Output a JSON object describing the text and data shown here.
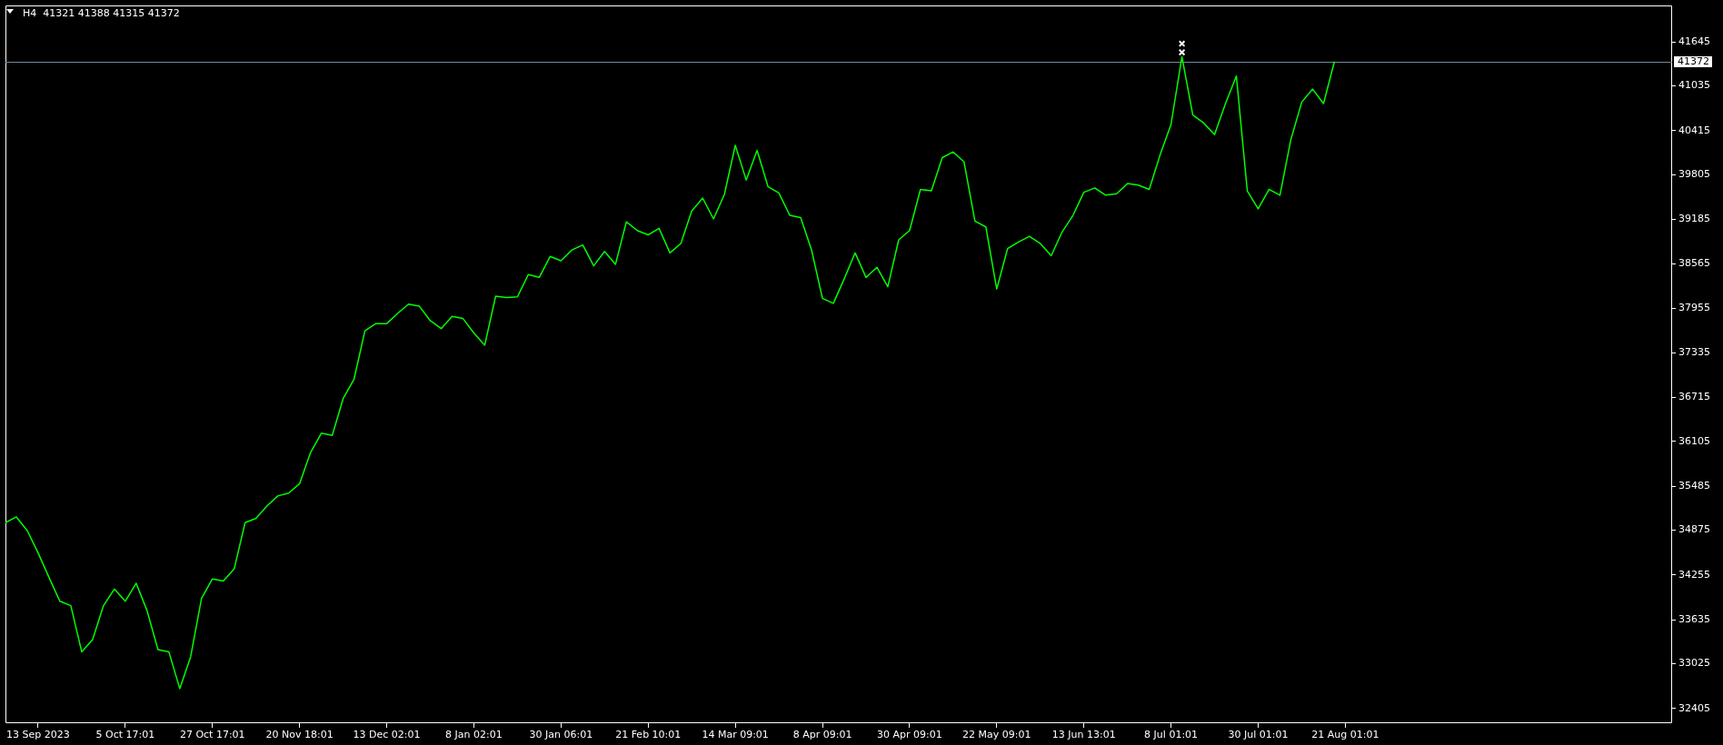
{
  "chart_data": {
    "type": "line",
    "title": "H4  41321 41388 41315 41372",
    "categories": [
      null,
      null,
      null,
      "13 Sep 2023",
      null,
      null,
      null,
      null,
      null,
      null,
      null,
      "5 Oct 17:01",
      null,
      null,
      null,
      null,
      null,
      null,
      null,
      "27 Oct 17:01",
      null,
      null,
      null,
      null,
      null,
      null,
      null,
      "20 Nov 18:01",
      null,
      null,
      null,
      null,
      null,
      null,
      null,
      "13 Dec 02:01",
      null,
      null,
      null,
      null,
      null,
      null,
      null,
      "8 Jan 02:01",
      null,
      null,
      null,
      null,
      null,
      null,
      null,
      "30 Jan 06:01",
      null,
      null,
      null,
      null,
      null,
      null,
      null,
      "21 Feb 10:01",
      null,
      null,
      null,
      null,
      null,
      null,
      null,
      "14 Mar 09:01",
      null,
      null,
      null,
      null,
      null,
      null,
      null,
      "8 Apr 09:01",
      null,
      null,
      null,
      null,
      null,
      null,
      null,
      "30 Apr 09:01",
      null,
      null,
      null,
      null,
      null,
      null,
      null,
      "22 May 09:01",
      null,
      null,
      null,
      null,
      null,
      null,
      null,
      "13 Jun 13:01",
      null,
      null,
      null,
      null,
      null,
      null,
      null,
      "8 Jul 01:01",
      null,
      null,
      null,
      null,
      null,
      null,
      null,
      "30 Jul 01:01",
      null,
      null,
      null,
      null,
      null,
      null,
      null,
      "21 Aug 01:01",
      null,
      null,
      null,
      null,
      null,
      null,
      null,
      null,
      null,
      null,
      null,
      null,
      null,
      null,
      null,
      null,
      null,
      null,
      null,
      null,
      null,
      null,
      null,
      null,
      null,
      null,
      null,
      null,
      null,
      null
    ],
    "series": [
      {
        "type": "line",
        "color": "#00ff00",
        "values": [
          34980,
          35060,
          34870,
          34560,
          34220,
          33890,
          33830,
          33190,
          33360,
          33830,
          34060,
          33890,
          34140,
          33760,
          33220,
          33190,
          32680,
          33120,
          33930,
          34200,
          34170,
          34340,
          34980,
          35040,
          35210,
          35350,
          35390,
          35520,
          35950,
          36220,
          36190,
          36700,
          36970,
          37640,
          37740,
          37740,
          37880,
          38010,
          37980,
          37780,
          37670,
          37840,
          37810,
          37610,
          37440,
          38120,
          38100,
          38110,
          38420,
          38380,
          38670,
          38610,
          38760,
          38830,
          38540,
          38740,
          38560,
          39150,
          39030,
          38970,
          39060,
          38720,
          38850,
          39300,
          39480,
          39190,
          39530,
          40210,
          39730,
          40140,
          39640,
          39550,
          39240,
          39210,
          38760,
          38090,
          38020,
          38360,
          38720,
          38380,
          38520,
          38250,
          38900,
          39030,
          39600,
          39580,
          40040,
          40120,
          39980,
          39160,
          39080,
          38220,
          38780,
          38870,
          38950,
          38850,
          38680,
          39010,
          39240,
          39560,
          39620,
          39520,
          39540,
          39680,
          39660,
          39600,
          40080,
          40500,
          41440,
          40630,
          40520,
          40360,
          40790,
          41170,
          39580,
          39330,
          39600,
          39520,
          40290,
          40810,
          40990,
          40790,
          41372,
          null,
          null,
          null,
          null,
          null,
          null,
          null,
          null,
          null,
          null,
          null,
          null,
          null,
          null,
          null,
          null,
          null,
          null,
          null,
          null,
          null,
          null,
          null,
          null,
          null,
          null,
          null,
          null,
          null,
          null,
          null
        ]
      },
      {
        "type": "scatter",
        "marker": "cross",
        "color": "#ffffff",
        "values": [
          null,
          null,
          null,
          null,
          null,
          null,
          null,
          null,
          null,
          null,
          null,
          null,
          null,
          null,
          null,
          null,
          null,
          null,
          null,
          null,
          null,
          null,
          null,
          null,
          null,
          null,
          null,
          null,
          null,
          null,
          null,
          null,
          null,
          null,
          null,
          null,
          null,
          null,
          null,
          null,
          null,
          null,
          null,
          null,
          null,
          null,
          null,
          null,
          null,
          null,
          null,
          null,
          null,
          null,
          null,
          null,
          null,
          null,
          null,
          null,
          null,
          null,
          null,
          null,
          null,
          null,
          null,
          null,
          null,
          null,
          null,
          null,
          null,
          null,
          null,
          null,
          null,
          null,
          null,
          null,
          null,
          null,
          null,
          null,
          null,
          null,
          null,
          null,
          null,
          null,
          null,
          null,
          null,
          null,
          null,
          null,
          null,
          null,
          null,
          null,
          null,
          null,
          null,
          null,
          null,
          null,
          null,
          null,
          41620,
          null,
          null,
          null,
          null,
          null,
          null,
          null,
          null,
          null,
          null,
          null,
          null,
          null,
          null,
          null,
          null,
          null,
          null,
          null,
          null,
          null,
          null,
          null,
          null,
          null,
          null,
          null,
          null,
          null,
          null,
          null,
          null,
          null,
          null,
          null,
          null,
          null,
          null,
          null,
          null,
          null,
          null,
          null,
          null,
          null
        ]
      },
      {
        "type": "scatter",
        "marker": "cross",
        "color": "#ffffff",
        "values": [
          null,
          null,
          null,
          null,
          null,
          null,
          null,
          null,
          null,
          null,
          null,
          null,
          null,
          null,
          null,
          null,
          null,
          null,
          null,
          null,
          null,
          null,
          null,
          null,
          null,
          null,
          null,
          null,
          null,
          null,
          null,
          null,
          null,
          null,
          null,
          null,
          null,
          null,
          null,
          null,
          null,
          null,
          null,
          null,
          null,
          null,
          null,
          null,
          null,
          null,
          null,
          null,
          null,
          null,
          null,
          null,
          null,
          null,
          null,
          null,
          null,
          null,
          null,
          null,
          null,
          null,
          null,
          null,
          null,
          null,
          null,
          null,
          null,
          null,
          null,
          null,
          null,
          null,
          null,
          null,
          null,
          null,
          null,
          null,
          null,
          null,
          null,
          null,
          null,
          null,
          null,
          null,
          null,
          null,
          null,
          null,
          null,
          null,
          null,
          null,
          null,
          null,
          null,
          null,
          null,
          null,
          null,
          null,
          41500,
          null,
          null,
          null,
          null,
          null,
          null,
          null,
          null,
          null,
          null,
          null,
          null,
          null,
          null,
          null,
          null,
          null,
          null,
          null,
          null,
          null,
          null,
          null,
          null,
          null,
          null,
          null,
          null,
          null,
          null,
          null,
          null,
          null,
          null,
          null,
          null,
          null,
          null,
          null,
          null,
          null,
          null,
          null,
          null,
          null
        ]
      }
    ],
    "ylim": [
      32200,
      42150
    ],
    "yticks": [
      32405,
      33025,
      33635,
      34255,
      34875,
      35485,
      36105,
      36715,
      37335,
      37955,
      38565,
      39185,
      39805,
      40415,
      41035,
      41645
    ],
    "ref_lines": [
      {
        "axis": "y",
        "value": 41372,
        "label": "41372",
        "color": "#778899"
      }
    ]
  }
}
